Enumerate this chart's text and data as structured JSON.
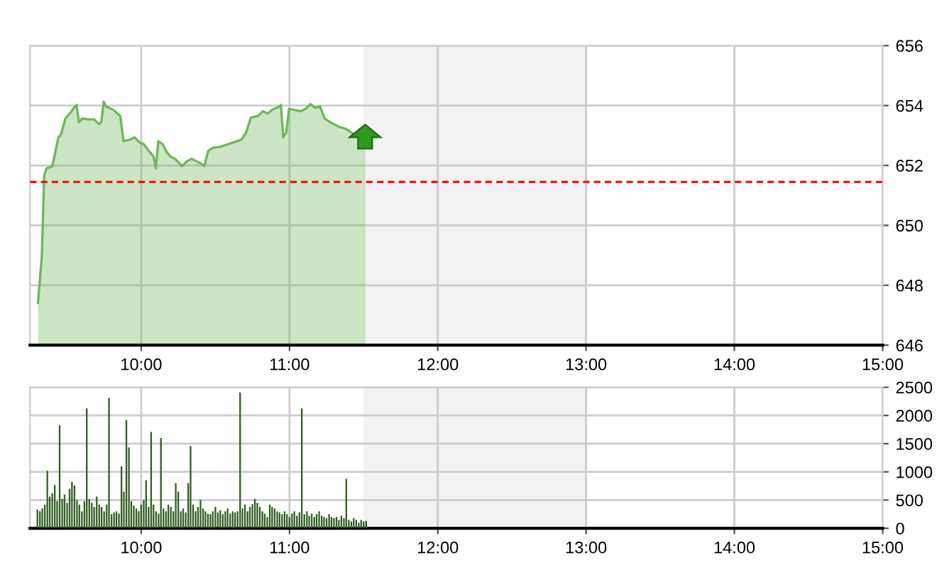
{
  "chart_data": [
    {
      "type": "area",
      "x": [
        9.304,
        9.33,
        9.346,
        9.362,
        9.401,
        9.442,
        9.458,
        9.49,
        9.522,
        9.554,
        9.564,
        9.58,
        9.603,
        9.635,
        9.683,
        9.715,
        9.731,
        9.747,
        9.763,
        9.811,
        9.859,
        9.881,
        9.923,
        9.955,
        9.987,
        10.019,
        10.051,
        10.083,
        10.099,
        10.115,
        10.147,
        10.17,
        10.196,
        10.228,
        10.26,
        10.276,
        10.308,
        10.34,
        10.372,
        10.404,
        10.426,
        10.452,
        10.484,
        10.532,
        10.58,
        10.628,
        10.676,
        10.708,
        10.74,
        10.788,
        10.821,
        10.853,
        10.885,
        10.933,
        10.942,
        10.958,
        10.978,
        10.997,
        11.029,
        11.077,
        11.109,
        11.141,
        11.173,
        11.205,
        11.237,
        11.285,
        11.333,
        11.381,
        11.429,
        11.462,
        11.51
      ],
      "series": [
        {
          "color": "#6db85a",
          "values": [
            647.41,
            648.97,
            651.67,
            651.9,
            651.98,
            652.94,
            653.02,
            653.57,
            653.76,
            653.97,
            654.02,
            653.44,
            653.57,
            653.54,
            653.54,
            653.38,
            653.44,
            654.13,
            653.97,
            653.86,
            653.65,
            652.81,
            652.86,
            652.94,
            652.78,
            652.7,
            652.49,
            652.3,
            651.9,
            652.81,
            652.7,
            652.46,
            652.3,
            652.22,
            652.06,
            651.98,
            652.14,
            652.22,
            652.14,
            652.06,
            651.98,
            652.49,
            652.59,
            652.62,
            652.7,
            652.78,
            652.86,
            653.1,
            653.6,
            653.65,
            653.81,
            653.73,
            653.86,
            653.97,
            654.02,
            652.94,
            653.1,
            653.89,
            653.86,
            653.81,
            653.89,
            654.05,
            653.92,
            653.97,
            653.57,
            653.41,
            653.29,
            653.22,
            653.06,
            652.97,
            652.94
          ]
        }
      ],
      "xlim": [
        9.25,
        15
      ],
      "xticks": [
        {
          "value": 10,
          "label": "10:00"
        },
        {
          "value": 11,
          "label": "11:00"
        },
        {
          "value": 12,
          "label": "12:00"
        },
        {
          "value": 13,
          "label": "13:00"
        },
        {
          "value": 14,
          "label": "14:00"
        },
        {
          "value": 15,
          "label": "15:00"
        }
      ],
      "ylim": [
        646,
        656
      ],
      "yticks": [
        646,
        648,
        650,
        652,
        654,
        656
      ],
      "grid": true,
      "ref_lines": [
        {
          "axis": "y",
          "value": 651.45,
          "color": "#ff0000",
          "line_style": "dashed"
        }
      ],
      "bands": [
        {
          "axis": "x",
          "from": 11.5,
          "to": 13,
          "color": "#f2f2f2"
        }
      ]
    },
    {
      "type": "bar",
      "x": [
        9.3,
        9.317,
        9.333,
        9.35,
        9.367,
        9.383,
        9.4,
        9.417,
        9.433,
        9.45,
        9.467,
        9.483,
        9.5,
        9.517,
        9.533,
        9.55,
        9.567,
        9.583,
        9.6,
        9.617,
        9.633,
        9.65,
        9.667,
        9.683,
        9.7,
        9.717,
        9.733,
        9.75,
        9.767,
        9.783,
        9.8,
        9.817,
        9.833,
        9.85,
        9.867,
        9.883,
        9.9,
        9.917,
        9.933,
        9.95,
        9.967,
        9.983,
        10.0,
        10.017,
        10.033,
        10.05,
        10.067,
        10.083,
        10.1,
        10.117,
        10.133,
        10.15,
        10.167,
        10.183,
        10.2,
        10.217,
        10.233,
        10.25,
        10.267,
        10.283,
        10.3,
        10.317,
        10.333,
        10.35,
        10.367,
        10.383,
        10.4,
        10.417,
        10.433,
        10.45,
        10.467,
        10.483,
        10.5,
        10.517,
        10.533,
        10.55,
        10.567,
        10.583,
        10.6,
        10.617,
        10.633,
        10.65,
        10.667,
        10.683,
        10.7,
        10.717,
        10.733,
        10.75,
        10.767,
        10.783,
        10.8,
        10.817,
        10.833,
        10.85,
        10.867,
        10.883,
        10.9,
        10.917,
        10.933,
        10.95,
        10.967,
        10.983,
        11.0,
        11.017,
        11.033,
        11.05,
        11.067,
        11.083,
        11.1,
        11.117,
        11.133,
        11.15,
        11.167,
        11.183,
        11.2,
        11.217,
        11.233,
        11.25,
        11.267,
        11.283,
        11.3,
        11.317,
        11.333,
        11.35,
        11.367,
        11.383,
        11.4,
        11.417,
        11.433,
        11.45,
        11.467,
        11.483,
        11.5,
        11.517
      ],
      "series": [
        {
          "color": "#2f5f22",
          "values": [
            330,
            300,
            350,
            420,
            1017,
            560,
            620,
            767,
            480,
            1825,
            520,
            600,
            450,
            700,
            825,
            760,
            500,
            420,
            300,
            480,
            2125,
            520,
            450,
            380,
            560,
            420,
            380,
            300,
            420,
            2310,
            250,
            280,
            300,
            260,
            1100,
            650,
            1917,
            1433,
            480,
            400,
            350,
            300,
            420,
            500,
            850,
            380,
            1708,
            420,
            300,
            260,
            1600,
            350,
            300,
            420,
            380,
            300,
            800,
            650,
            300,
            350,
            280,
            800,
            1458,
            420,
            300,
            380,
            500,
            350,
            300,
            260,
            250,
            300,
            380,
            280,
            320,
            250,
            300,
            350,
            260,
            300,
            280,
            300,
            2408,
            350,
            420,
            300,
            380,
            430,
            520,
            450,
            380,
            300,
            260,
            200,
            420,
            380,
            350,
            300,
            280,
            250,
            300,
            250,
            200,
            260,
            300,
            220,
            280,
            2125,
            250,
            300,
            220,
            260,
            200,
            250,
            300,
            220,
            200,
            180,
            250,
            200,
            180,
            200,
            150,
            220,
            180,
            875,
            150,
            120,
            180,
            150,
            100,
            150,
            120,
            130
          ]
        }
      ],
      "xlim": [
        9.25,
        15
      ],
      "xticks": [
        {
          "value": 10,
          "label": "10:00"
        },
        {
          "value": 11,
          "label": "11:00"
        },
        {
          "value": 12,
          "label": "12:00"
        },
        {
          "value": 13,
          "label": "13:00"
        },
        {
          "value": 14,
          "label": "14:00"
        },
        {
          "value": 15,
          "label": "15:00"
        }
      ],
      "ylim": [
        0,
        2500
      ],
      "yticks": [
        0,
        500,
        1000,
        1500,
        2000,
        2500
      ],
      "grid": true,
      "bands": [
        {
          "axis": "x",
          "from": 11.5,
          "to": 13,
          "color": "#f2f2f2"
        }
      ]
    }
  ]
}
